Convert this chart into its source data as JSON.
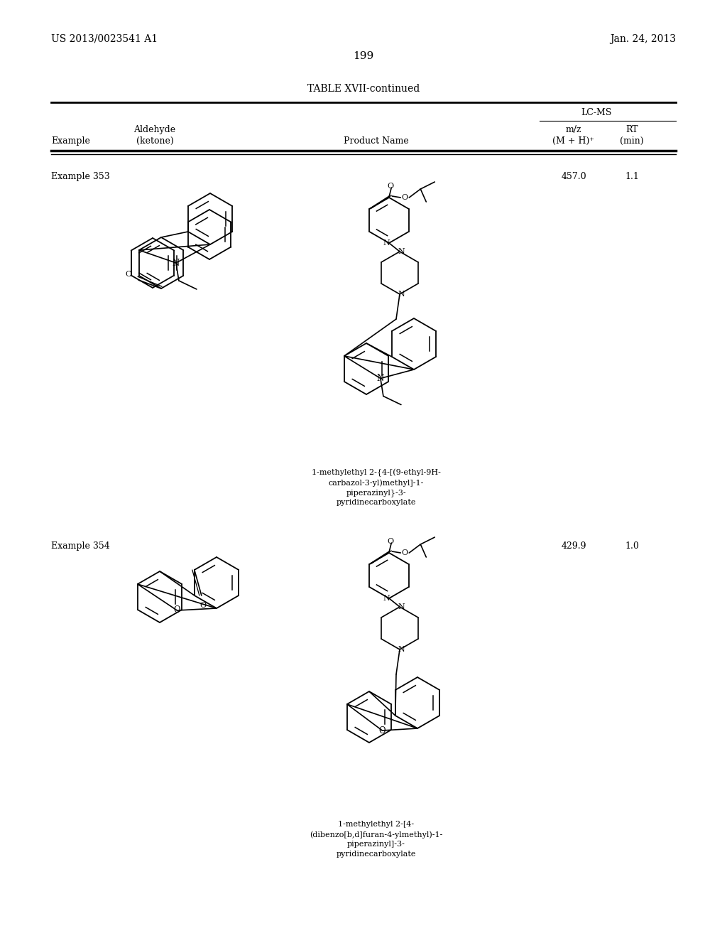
{
  "background_color": "#ffffff",
  "page_number": "199",
  "patent_number": "US 2013/0023541 A1",
  "patent_date": "Jan. 24, 2013",
  "table_title": "TABLE XVII-continued",
  "col_example": "Example",
  "col_aldehyde": "Aldehyde",
  "col_ketone": "(ketone)",
  "col_product": "Product Name",
  "col_lcms": "LC-MS",
  "col_mz1": "m/z",
  "col_mz2": "(M + H)⁺",
  "col_rt1": "RT",
  "col_rt2": "(min)",
  "ex353_label": "Example 353",
  "ex353_mz": "457.0",
  "ex353_rt": "1.1",
  "ex353_name_1": "1-methylethyl 2-{4-[(9-ethyl-9H-",
  "ex353_name_2": "carbazol-3-yl)methyl]-1-",
  "ex353_name_3": "piperazinyl}-3-",
  "ex353_name_4": "pyridinecarboxylate",
  "ex354_label": "Example 354",
  "ex354_mz": "429.9",
  "ex354_rt": "1.0",
  "ex354_name_1": "1-methylethyl 2-[4-",
  "ex354_name_2": "(dibenzo[b,d]furan-4-ylmethyl)-1-",
  "ex354_name_3": "piperazinyl]-3-",
  "ex354_name_4": "pyridinecarboxylate"
}
